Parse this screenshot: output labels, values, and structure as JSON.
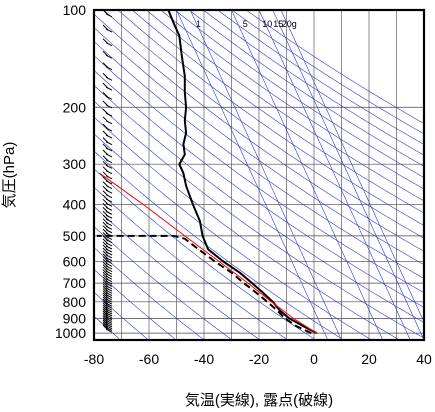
{
  "chart_data": {
    "type": "line",
    "title": "",
    "xlabel": "気温(実線), 露点(破線)",
    "ylabel": "気圧(hPa)",
    "xlim": [
      -80,
      40
    ],
    "ylim": [
      1050,
      100
    ],
    "y_scale": "log",
    "grid": true,
    "x_ticks": [
      -80,
      -60,
      -40,
      -20,
      0,
      20,
      40
    ],
    "y_ticks": [
      100,
      200,
      300,
      400,
      500,
      600,
      700,
      800,
      900,
      1000
    ],
    "mixing_ratio_labels": [
      "1",
      "5",
      "10",
      "15",
      "20g"
    ],
    "series": [
      {
        "name": "",
        "style": "solid",
        "color": "#000000",
        "points": [
          {
            "p": 1000,
            "t": 1.0
          },
          {
            "p": 950,
            "t": -4.0
          },
          {
            "p": 900,
            "t": -9.0
          },
          {
            "p": 850,
            "t": -12.5
          },
          {
            "p": 800,
            "t": -15.0
          },
          {
            "p": 750,
            "t": -18.5
          },
          {
            "p": 700,
            "t": -22.5
          },
          {
            "p": 650,
            "t": -27.0
          },
          {
            "p": 600,
            "t": -33.0
          },
          {
            "p": 550,
            "t": -38.5
          },
          {
            "p": 500,
            "t": -40.5
          },
          {
            "p": 450,
            "t": -41.5
          },
          {
            "p": 400,
            "t": -44.0
          },
          {
            "p": 350,
            "t": -46.5
          },
          {
            "p": 320,
            "t": -47.5
          },
          {
            "p": 300,
            "t": -49.0
          },
          {
            "p": 280,
            "t": -47.0
          },
          {
            "p": 260,
            "t": -47.5
          },
          {
            "p": 240,
            "t": -46.5
          },
          {
            "p": 220,
            "t": -47.0
          },
          {
            "p": 200,
            "t": -46.5
          },
          {
            "p": 180,
            "t": -47.0
          },
          {
            "p": 160,
            "t": -47.0
          },
          {
            "p": 140,
            "t": -48.0
          },
          {
            "p": 120,
            "t": -49.0
          },
          {
            "p": 110,
            "t": -51.0
          },
          {
            "p": 100,
            "t": -53.0
          }
        ]
      },
      {
        "name": "",
        "style": "dashed",
        "color": "#000000",
        "points": [
          {
            "p": 1000,
            "t": -1.0
          },
          {
            "p": 950,
            "t": -6.5
          },
          {
            "p": 900,
            "t": -10.5
          },
          {
            "p": 850,
            "t": -13.5
          },
          {
            "p": 800,
            "t": -17.0
          },
          {
            "p": 750,
            "t": -21.0
          },
          {
            "p": 700,
            "t": -25.5
          },
          {
            "p": 650,
            "t": -30.0
          },
          {
            "p": 600,
            "t": -36.0
          },
          {
            "p": 550,
            "t": -42.0
          },
          {
            "p": 510,
            "t": -47.0
          },
          {
            "p": 500,
            "t": -51.0
          },
          {
            "p": 500,
            "t": -79.0
          }
        ]
      },
      {
        "name": "",
        "style": "solid",
        "color": "#ff0000",
        "points": [
          {
            "p": 1000,
            "t": 1.0
          },
          {
            "p": 900,
            "t": -7.5
          },
          {
            "p": 800,
            "t": -15.5
          },
          {
            "p": 700,
            "t": -24.0
          },
          {
            "p": 600,
            "t": -34.5
          },
          {
            "p": 500,
            "t": -47.0
          },
          {
            "p": 400,
            "t": -62.0
          },
          {
            "p": 320,
            "t": -78.0
          }
        ]
      }
    ],
    "wind_barbs_present": true,
    "colors": {
      "frame": "#000000",
      "grid": "#444444",
      "guide": "#2b3bd6",
      "parcel": "#ff0000"
    }
  }
}
